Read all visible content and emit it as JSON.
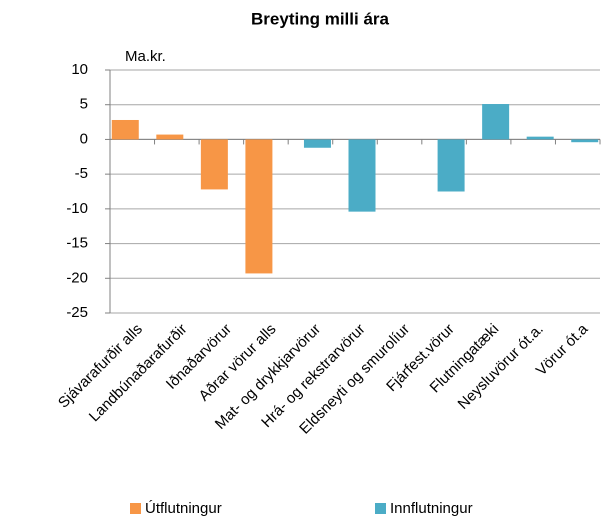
{
  "chart_data": {
    "type": "bar",
    "title": "Breyting milli ára",
    "y_label": "Ma.kr.",
    "categories": [
      "Sjávarafurðir alls",
      "Landbúnaðarafurðir",
      "Iðnaðarvörur",
      "Aðrar vörur alls",
      "Mat- og drykkjarvörur",
      "Hrá- og rekstrarvörur",
      "Eldsneyti og smurolíur",
      "Fjárfest.vörur",
      "Flutningatæki",
      "Neysluvörur ót.a.",
      "Vörur ót.a"
    ],
    "series": [
      {
        "name": "Útflutningur",
        "color": "#f79646",
        "values": [
          2.8,
          0.7,
          -7.2,
          -19.3,
          null,
          null,
          null,
          null,
          null,
          null,
          null
        ]
      },
      {
        "name": "Innflutningur",
        "color": "#4bacc6",
        "values": [
          null,
          null,
          null,
          null,
          -1.2,
          -10.4,
          0,
          -7.5,
          5.1,
          0.4,
          -0.4
        ]
      }
    ],
    "ylim": [
      -25,
      10
    ],
    "yticks": [
      -25,
      -20,
      -15,
      -10,
      -5,
      0,
      5,
      10
    ],
    "grid": true,
    "legend": "bottom"
  }
}
